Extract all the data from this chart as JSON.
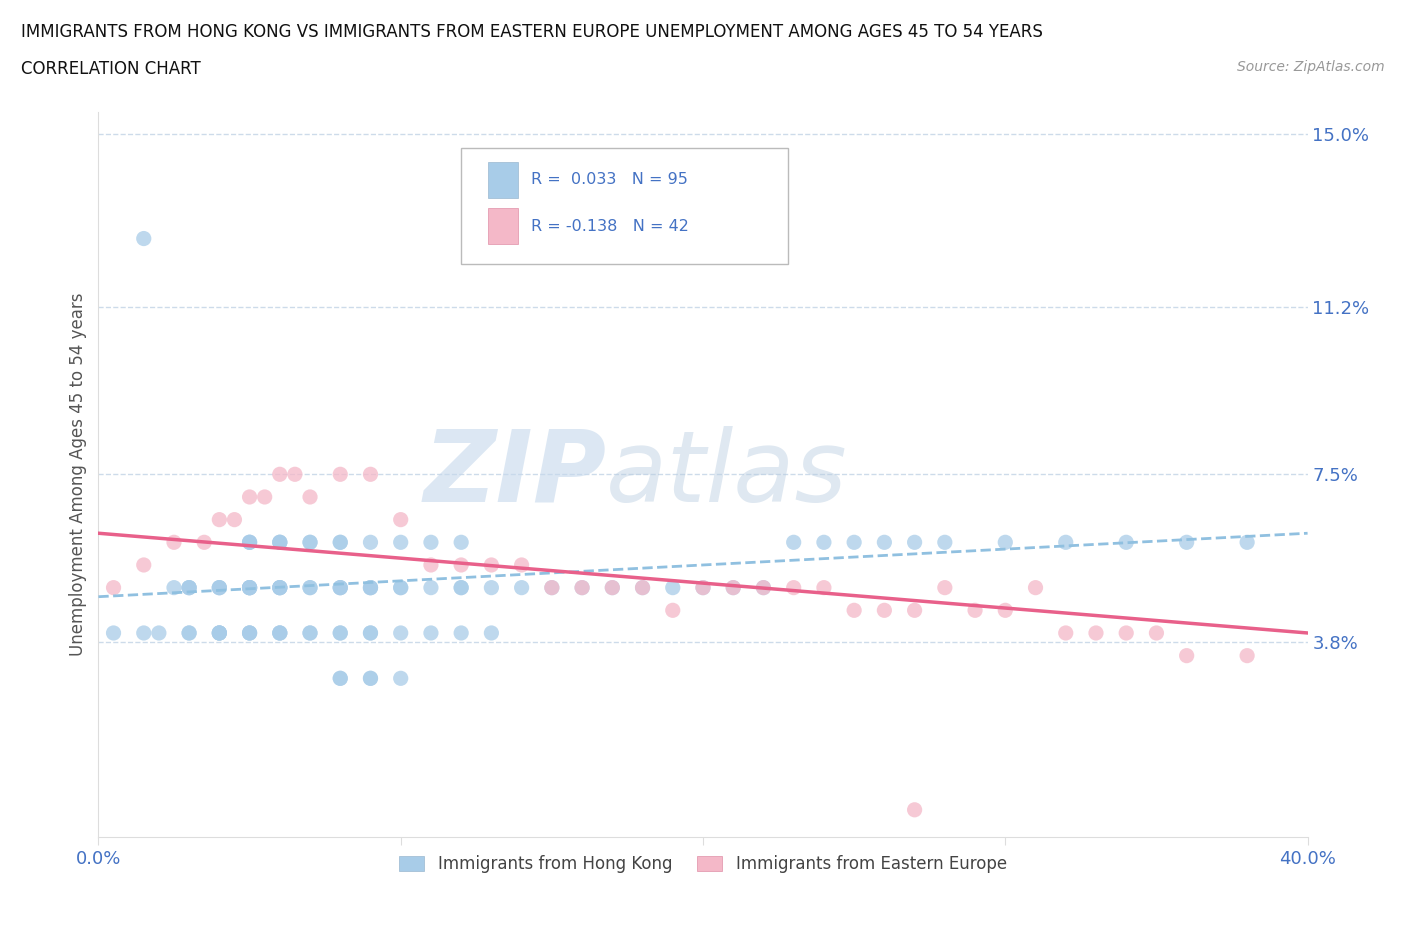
{
  "title_line1": "IMMIGRANTS FROM HONG KONG VS IMMIGRANTS FROM EASTERN EUROPE UNEMPLOYMENT AMONG AGES 45 TO 54 YEARS",
  "title_line2": "CORRELATION CHART",
  "source_text": "Source: ZipAtlas.com",
  "ylabel": "Unemployment Among Ages 45 to 54 years",
  "xlim": [
    0.0,
    0.4
  ],
  "ylim": [
    -0.005,
    0.155
  ],
  "ytick_vals": [
    0.038,
    0.075,
    0.112,
    0.15
  ],
  "ytick_labels": [
    "3.8%",
    "7.5%",
    "11.2%",
    "15.0%"
  ],
  "xtick_vals": [
    0.0,
    0.1,
    0.2,
    0.3,
    0.4
  ],
  "xtick_labels": [
    "0.0%",
    "",
    "",
    "",
    "40.0%"
  ],
  "legend_text1": "R =  0.033   N = 95",
  "legend_text2": "R = -0.138   N = 42",
  "color_blue": "#a8cce8",
  "color_pink": "#f4b8c8",
  "color_trend_blue": "#90c0e0",
  "color_trend_pink": "#e8608a",
  "color_axis_label": "#4472C4",
  "watermark_color": "#d0dff0",
  "grid_color": "#c8d8e8",
  "blue_x": [
    0.005,
    0.015,
    0.02,
    0.025,
    0.03,
    0.03,
    0.03,
    0.03,
    0.03,
    0.04,
    0.04,
    0.04,
    0.04,
    0.04,
    0.04,
    0.04,
    0.05,
    0.05,
    0.05,
    0.05,
    0.05,
    0.05,
    0.05,
    0.05,
    0.05,
    0.05,
    0.05,
    0.06,
    0.06,
    0.06,
    0.06,
    0.06,
    0.06,
    0.06,
    0.06,
    0.06,
    0.06,
    0.07,
    0.07,
    0.07,
    0.07,
    0.07,
    0.07,
    0.08,
    0.08,
    0.08,
    0.08,
    0.08,
    0.08,
    0.08,
    0.08,
    0.08,
    0.09,
    0.09,
    0.09,
    0.09,
    0.09,
    0.09,
    0.09,
    0.09,
    0.1,
    0.1,
    0.1,
    0.1,
    0.1,
    0.11,
    0.11,
    0.11,
    0.12,
    0.12,
    0.12,
    0.12,
    0.13,
    0.13,
    0.14,
    0.15,
    0.16,
    0.17,
    0.18,
    0.19,
    0.2,
    0.21,
    0.22,
    0.23,
    0.24,
    0.25,
    0.26,
    0.27,
    0.28,
    0.3,
    0.32,
    0.34,
    0.36,
    0.38,
    0.015
  ],
  "blue_y": [
    0.04,
    0.04,
    0.04,
    0.05,
    0.05,
    0.05,
    0.05,
    0.04,
    0.04,
    0.05,
    0.05,
    0.05,
    0.04,
    0.04,
    0.04,
    0.04,
    0.06,
    0.06,
    0.06,
    0.05,
    0.05,
    0.05,
    0.05,
    0.05,
    0.04,
    0.04,
    0.04,
    0.06,
    0.06,
    0.06,
    0.05,
    0.05,
    0.05,
    0.05,
    0.04,
    0.04,
    0.04,
    0.06,
    0.06,
    0.05,
    0.05,
    0.04,
    0.04,
    0.06,
    0.06,
    0.05,
    0.05,
    0.05,
    0.04,
    0.04,
    0.03,
    0.03,
    0.06,
    0.05,
    0.05,
    0.05,
    0.04,
    0.04,
    0.03,
    0.03,
    0.06,
    0.05,
    0.05,
    0.04,
    0.03,
    0.06,
    0.05,
    0.04,
    0.06,
    0.05,
    0.05,
    0.04,
    0.05,
    0.04,
    0.05,
    0.05,
    0.05,
    0.05,
    0.05,
    0.05,
    0.05,
    0.05,
    0.05,
    0.06,
    0.06,
    0.06,
    0.06,
    0.06,
    0.06,
    0.06,
    0.06,
    0.06,
    0.06,
    0.06,
    0.127
  ],
  "pink_x": [
    0.005,
    0.015,
    0.025,
    0.035,
    0.04,
    0.045,
    0.05,
    0.055,
    0.06,
    0.065,
    0.07,
    0.08,
    0.09,
    0.1,
    0.11,
    0.12,
    0.13,
    0.14,
    0.15,
    0.16,
    0.17,
    0.18,
    0.19,
    0.2,
    0.21,
    0.22,
    0.23,
    0.24,
    0.25,
    0.26,
    0.27,
    0.28,
    0.29,
    0.3,
    0.31,
    0.32,
    0.33,
    0.34,
    0.35,
    0.36,
    0.38,
    0.27
  ],
  "pink_y": [
    0.05,
    0.055,
    0.06,
    0.06,
    0.065,
    0.065,
    0.07,
    0.07,
    0.075,
    0.075,
    0.07,
    0.075,
    0.075,
    0.065,
    0.055,
    0.055,
    0.055,
    0.055,
    0.05,
    0.05,
    0.05,
    0.05,
    0.045,
    0.05,
    0.05,
    0.05,
    0.05,
    0.05,
    0.045,
    0.045,
    0.045,
    0.05,
    0.045,
    0.045,
    0.05,
    0.04,
    0.04,
    0.04,
    0.04,
    0.035,
    0.035,
    0.001
  ],
  "blue_trend_x": [
    0.0,
    0.4
  ],
  "blue_trend_y": [
    0.048,
    0.062
  ],
  "pink_trend_x": [
    0.0,
    0.4
  ],
  "pink_trend_y": [
    0.062,
    0.04
  ]
}
